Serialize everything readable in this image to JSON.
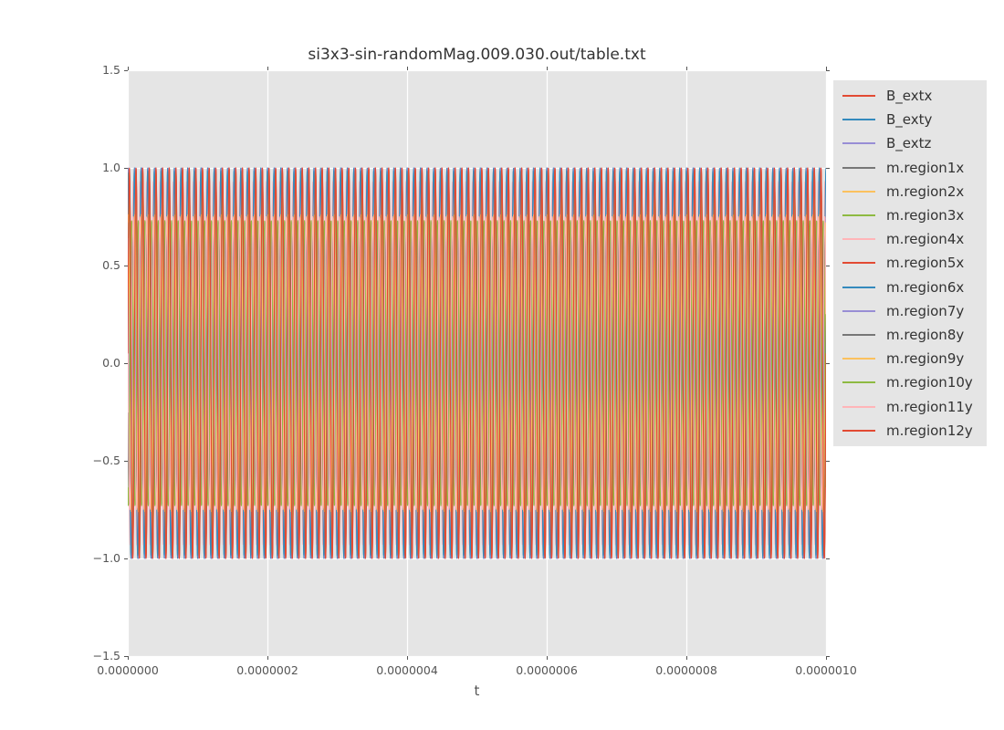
{
  "chart_data": {
    "type": "line",
    "title": "si3x3-sin-randomMag.009.030.out/table.txt",
    "xlabel": "t",
    "ylabel": "",
    "xlim": [
      0,
      1e-06
    ],
    "ylim": [
      -1.5,
      1.5
    ],
    "grid": true,
    "grid_color": "#ffffff",
    "plot_bg": "#e5e5e5",
    "tick_color": "#555555",
    "x_ticks": {
      "values": [
        0,
        2e-07,
        4e-07,
        6e-07,
        8e-07,
        1e-06
      ],
      "labels": [
        "0.0000000",
        "0.0000002",
        "0.0000004",
        "0.0000006",
        "0.0000008",
        "0.0000010"
      ]
    },
    "y_ticks": {
      "values": [
        1.5,
        1.0,
        0.5,
        0.0,
        -0.5,
        -1.0,
        -1.5
      ],
      "labels": [
        "1.5",
        "1.0",
        "0.5",
        "0.0",
        "−0.5",
        "−1.0",
        "−1.5"
      ]
    },
    "legend": {
      "position": "right",
      "bg": "#e5e5e5"
    },
    "waveform_model": "y(t) = amplitude * sin(2*pi*frequency_hz*t + phase_rad)",
    "frequency_hz": 105000000.0,
    "samples": 4400,
    "series": [
      {
        "name": "B_extx",
        "color": "#E24A33",
        "amplitude": 1.0,
        "phase_rad": 0.0
      },
      {
        "name": "B_exty",
        "color": "#348ABD",
        "amplitude": 1.0,
        "phase_rad": 1.571
      },
      {
        "name": "B_extz",
        "color": "#988ED5",
        "amplitude": 1.0,
        "phase_rad": 0.785
      },
      {
        "name": "m.region1x",
        "color": "#777777",
        "amplitude": 0.99,
        "phase_rad": 0.25
      },
      {
        "name": "m.region2x",
        "color": "#FBC15E",
        "amplitude": 0.78,
        "phase_rad": 1.9
      },
      {
        "name": "m.region3x",
        "color": "#8EBA42",
        "amplitude": 0.97,
        "phase_rad": 0.45
      },
      {
        "name": "m.region4x",
        "color": "#FFB5B8",
        "amplitude": 0.93,
        "phase_rad": 2.6
      },
      {
        "name": "m.region5x",
        "color": "#E24A33",
        "amplitude": 1.0,
        "phase_rad": 0.12
      },
      {
        "name": "m.region6x",
        "color": "#348ABD",
        "amplitude": 0.985,
        "phase_rad": 1.7
      },
      {
        "name": "m.region7y",
        "color": "#988ED5",
        "amplitude": 0.74,
        "phase_rad": 2.1
      },
      {
        "name": "m.region8y",
        "color": "#777777",
        "amplitude": 0.72,
        "phase_rad": 3.5
      },
      {
        "name": "m.region9y",
        "color": "#FBC15E",
        "amplitude": 0.76,
        "phase_rad": 1.25
      },
      {
        "name": "m.region10y",
        "color": "#8EBA42",
        "amplitude": 0.73,
        "phase_rad": 4.2
      },
      {
        "name": "m.region11y",
        "color": "#FFB5B8",
        "amplitude": 0.75,
        "phase_rad": 2.8
      },
      {
        "name": "m.region12y",
        "color": "#E24A33",
        "amplitude": 0.995,
        "phase_rad": 0.05
      }
    ]
  }
}
